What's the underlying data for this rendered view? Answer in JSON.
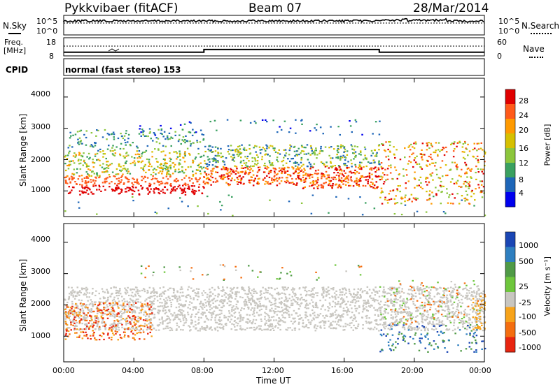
{
  "header": {
    "radar": "Pykkvibaer (fitACF)",
    "beam": "Beam 07",
    "date": "28/Mar/2014"
  },
  "noise_panel": {
    "left_label": "N.Sky",
    "right_label": "N.Search",
    "tick_top": "10^5",
    "tick_bottom": "10^0"
  },
  "freq_panel": {
    "left_label_1": "Freq.",
    "left_label_2": "[MHz]",
    "right_label": "Nave",
    "left_ticks": [
      "18",
      "8"
    ],
    "right_ticks": [
      "60",
      "0"
    ]
  },
  "cpid": {
    "label": "CPID",
    "value": "normal (fast stereo) 153"
  },
  "colorbars": {
    "power": {
      "title": "Power [dB]",
      "ticks": [
        "28",
        "24",
        "20",
        "16",
        "12",
        "8",
        "4"
      ],
      "colors": [
        "#e00000",
        "#ff5a1a",
        "#ff9a00",
        "#d6c000",
        "#8cc63c",
        "#3aa060",
        "#1e66b8",
        "#0000ee"
      ]
    },
    "velocity": {
      "title": "Velocity [m s⁻¹]",
      "ticks": [
        "1000",
        "500",
        "25",
        "-25",
        "-100",
        "-500",
        "-1000"
      ],
      "colors": [
        "#1a46b4",
        "#2e7fc0",
        "#4f9a46",
        "#6ec63c",
        "#c8c6c0",
        "#f7a31a",
        "#f46e10",
        "#e82510"
      ]
    }
  },
  "chart_data": [
    {
      "type": "line",
      "title": "Noise (N.Sky, N.Search)",
      "x": [
        "00:00",
        "04:00",
        "08:00",
        "12:00",
        "16:00",
        "20:00",
        "00:00"
      ],
      "series": [
        {
          "name": "N.Sky",
          "values": [
            10000,
            10000,
            10000,
            10000,
            10000,
            10000,
            10000
          ]
        }
      ],
      "ylim": [
        1,
        100000
      ],
      "scale": "log"
    },
    {
      "type": "line",
      "title": "Freq. / Nave",
      "x": [
        0,
        8,
        8,
        18,
        18,
        24
      ],
      "series": [
        {
          "name": "Freq. [MHz]",
          "values": [
            10,
            10,
            11.5,
            11.5,
            10,
            10
          ]
        }
      ],
      "ylim": [
        8,
        18
      ]
    },
    {
      "type": "heatmap",
      "title": "Power [dB]",
      "xlabel": "Time UT",
      "ylabel": "Slant Range [km]",
      "xlim": [
        0,
        24
      ],
      "ylim": [
        180,
        4600
      ],
      "x_ticks": [
        "00:00",
        "04:00",
        "08:00",
        "12:00",
        "16:00",
        "20:00",
        "00:00"
      ],
      "y_ticks": [
        1000,
        2000,
        3000,
        4000
      ],
      "bands": [
        {
          "t": [
            0,
            8
          ],
          "range": [
            1400,
            1800
          ],
          "value": 20
        },
        {
          "t": [
            0,
            8
          ],
          "range": [
            1000,
            1400
          ],
          "value": 26
        },
        {
          "t": [
            8,
            18
          ],
          "range": [
            1200,
            2000
          ],
          "value": 24
        },
        {
          "t": [
            8,
            18
          ],
          "range": [
            2000,
            2600
          ],
          "value": 10
        },
        {
          "t": [
            18,
            24
          ],
          "range": [
            500,
            2500
          ],
          "value": 22
        }
      ]
    },
    {
      "type": "heatmap",
      "title": "Velocity [m s⁻¹]",
      "xlabel": "Time UT",
      "ylabel": "Slant Range [km]",
      "xlim": [
        0,
        24
      ],
      "ylim": [
        180,
        4600
      ],
      "x_ticks": [
        "00:00",
        "04:00",
        "08:00",
        "12:00",
        "16:00",
        "20:00",
        "00:00"
      ],
      "y_ticks": [
        1000,
        2000,
        3000,
        4000
      ],
      "bands": [
        {
          "t": [
            0,
            5
          ],
          "range": [
            1000,
            2000
          ],
          "value": -400
        },
        {
          "t": [
            0,
            24
          ],
          "range": [
            1200,
            2600
          ],
          "value": 0
        },
        {
          "t": [
            18,
            24
          ],
          "range": [
            600,
            1400
          ],
          "value": 400
        }
      ]
    }
  ],
  "axes": {
    "xlabel": "Time UT",
    "ylabel": "Slant Range [km]",
    "xticks": [
      "00:00",
      "04:00",
      "08:00",
      "12:00",
      "16:00",
      "20:00",
      "00:00"
    ],
    "yticks": [
      "1000",
      "2000",
      "3000",
      "4000"
    ]
  }
}
